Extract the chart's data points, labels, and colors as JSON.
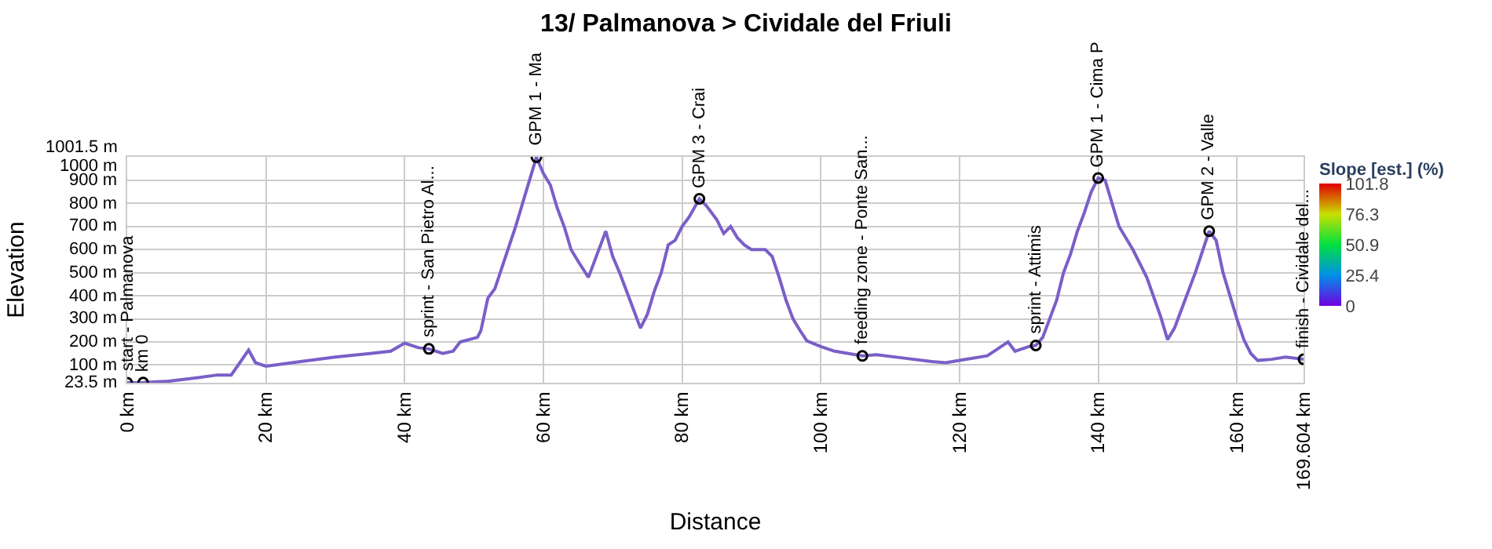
{
  "chart_data": {
    "type": "line",
    "title": "13/ Palmanova > Cividale del Friuli",
    "xlabel": "Distance",
    "ylabel": "Elevation",
    "clabel": "Slope [est.] (%)",
    "x": [
      0,
      2.3,
      6,
      10,
      13,
      15,
      17.5,
      18.5,
      20,
      25,
      30,
      35,
      38,
      40,
      42,
      43.5,
      45.5,
      47,
      48,
      50.5,
      51,
      52,
      53,
      54,
      55,
      56,
      57,
      58,
      59,
      60,
      61,
      62,
      63,
      64,
      65,
      66.5,
      68,
      69,
      70,
      71,
      72,
      73,
      74,
      75,
      76,
      77,
      78,
      79,
      80,
      81,
      82.5,
      83.5,
      85,
      86,
      87,
      88,
      89,
      90,
      92,
      93,
      94,
      95,
      96,
      97,
      98,
      100,
      102,
      104,
      106,
      108,
      112,
      116,
      118,
      120,
      124,
      126,
      127,
      128,
      130,
      131,
      132,
      133,
      134,
      135,
      136,
      137,
      138,
      139,
      140,
      141,
      142,
      143,
      145,
      147,
      149,
      150,
      151,
      152,
      154,
      155,
      156,
      157,
      158,
      159,
      160,
      161,
      162,
      163,
      165,
      167,
      169.604
    ],
    "series": [
      {
        "color": "#7a5fc8",
        "values": [
          23.5,
          24,
          30,
          45,
          57,
          57,
          165,
          110,
          95,
          115,
          135,
          150,
          160,
          195,
          175,
          170,
          150,
          160,
          200,
          220,
          250,
          390,
          430,
          520,
          610,
          700,
          800,
          900,
          1000,
          930,
          880,
          780,
          700,
          600,
          550,
          480,
          600,
          680,
          570,
          500,
          420,
          340,
          260,
          320,
          420,
          500,
          620,
          640,
          700,
          740,
          820,
          790,
          730,
          670,
          700,
          650,
          620,
          600,
          600,
          570,
          480,
          380,
          300,
          250,
          205,
          180,
          160,
          150,
          140,
          145,
          130,
          115,
          110,
          120,
          140,
          180,
          200,
          160,
          180,
          185,
          220,
          300,
          380,
          500,
          580,
          680,
          760,
          850,
          910,
          900,
          800,
          700,
          600,
          480,
          310,
          210,
          260,
          340,
          500,
          590,
          680,
          640,
          500,
          400,
          300,
          210,
          150,
          120,
          125,
          135,
          125
        ]
      }
    ],
    "clim": [
      0,
      101.8
    ],
    "cticks": [
      0,
      25.4,
      50.9,
      76.3,
      101.8
    ],
    "xlim": [
      0,
      169.604
    ],
    "xticks": [
      {
        "value": 0,
        "label": "0 km"
      },
      {
        "value": 20,
        "label": "20 km"
      },
      {
        "value": 40,
        "label": "40 km"
      },
      {
        "value": 60,
        "label": "60 km"
      },
      {
        "value": 80,
        "label": "80 km"
      },
      {
        "value": 100,
        "label": "100 km"
      },
      {
        "value": 120,
        "label": "120 km"
      },
      {
        "value": 140,
        "label": "140 km"
      },
      {
        "value": 160,
        "label": "160 km"
      },
      {
        "value": 169.604,
        "label": "169.604 km"
      }
    ],
    "ylim": [
      23.5,
      1001.5
    ],
    "yticks": [
      {
        "value": 23.5,
        "label": "23.5 m"
      },
      {
        "value": 100,
        "label": "100 m"
      },
      {
        "value": 200,
        "label": "200 m"
      },
      {
        "value": 300,
        "label": "300 m"
      },
      {
        "value": 400,
        "label": "400 m"
      },
      {
        "value": 500,
        "label": "500 m"
      },
      {
        "value": 600,
        "label": "600 m"
      },
      {
        "value": 700,
        "label": "700 m"
      },
      {
        "value": 800,
        "label": "800 m"
      },
      {
        "value": 900,
        "label": "900 m"
      },
      {
        "value": 1000,
        "label": "1000 m"
      },
      {
        "value": 1001.5,
        "label": "1001.5 m"
      }
    ],
    "grid": true,
    "line_style": "solid",
    "annotations": [
      {
        "text": "start - Palmanova",
        "x": 0,
        "y": 23.5
      },
      {
        "text": "km 0",
        "x": 2.3,
        "y": 24
      },
      {
        "text": "sprint - San Pietro Al...",
        "x": 43.5,
        "y": 170
      },
      {
        "text": "GPM 1 - Ma",
        "x": 59,
        "y": 1000
      },
      {
        "text": "GPM 3 - Crai",
        "x": 82.5,
        "y": 820
      },
      {
        "text": "feeding zone - Ponte San...",
        "x": 106,
        "y": 140
      },
      {
        "text": "sprint - Attimis",
        "x": 131,
        "y": 185
      },
      {
        "text": "GPM 1 - Cima P",
        "x": 140,
        "y": 910
      },
      {
        "text": "GPM 2 - Valle",
        "x": 156,
        "y": 680
      },
      {
        "text": "finish - Cividale del...",
        "x": 169.604,
        "y": 125
      }
    ]
  }
}
